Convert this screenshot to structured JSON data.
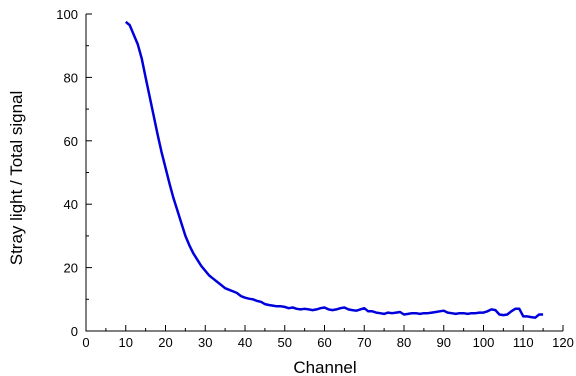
{
  "chart_data": {
    "type": "line",
    "title": "",
    "xlabel": "Channel",
    "ylabel": "Stray light / Total signal",
    "xlim": [
      0,
      120
    ],
    "ylim": [
      0,
      100
    ],
    "xticks": [
      0,
      10,
      20,
      30,
      40,
      50,
      60,
      70,
      80,
      90,
      100,
      110,
      120
    ],
    "yticks": [
      0,
      20,
      40,
      60,
      80,
      100
    ],
    "xticks_minor": [
      5,
      15,
      25,
      35,
      45,
      55,
      65,
      75,
      85,
      95,
      105,
      115
    ],
    "yticks_minor": [
      10,
      30,
      50,
      70,
      90
    ],
    "grid": false,
    "legend": "none",
    "series": [
      {
        "color": "#0000dd",
        "x": [
          10,
          11,
          12,
          13,
          14,
          15,
          16,
          17,
          18,
          19,
          20,
          21,
          22,
          23,
          24,
          25,
          26,
          27,
          28,
          29,
          30,
          31,
          32,
          33,
          34,
          35,
          36,
          37,
          38,
          39,
          40,
          41,
          42,
          43,
          44,
          45,
          46,
          47,
          48,
          49,
          50,
          51,
          52,
          53,
          54,
          55,
          56,
          57,
          58,
          59,
          60,
          61,
          62,
          63,
          64,
          65,
          66,
          67,
          68,
          69,
          70,
          71,
          72,
          73,
          74,
          75,
          76,
          77,
          78,
          79,
          80,
          81,
          82,
          83,
          84,
          85,
          86,
          87,
          88,
          89,
          90,
          91,
          92,
          93,
          94,
          95,
          96,
          97,
          98,
          99,
          100,
          101,
          102,
          103,
          104,
          105,
          106,
          107,
          108,
          109,
          110,
          111,
          112,
          113,
          114,
          115
        ],
        "y": [
          97.5,
          96.5,
          93.5,
          90.5,
          86,
          80,
          74,
          68,
          62,
          56.5,
          51.5,
          46.5,
          42,
          38,
          34,
          30,
          27,
          24.5,
          22.5,
          20.5,
          19,
          17.5,
          16.5,
          15.5,
          14.5,
          13.5,
          13,
          12.5,
          12,
          11,
          10.5,
          10.2,
          10,
          9.5,
          9.2,
          8.5,
          8.2,
          8,
          7.8,
          7.8,
          7.6,
          7.2,
          7.4,
          7,
          6.8,
          7,
          6.8,
          6.6,
          6.8,
          7.2,
          7.4,
          6.8,
          6.6,
          6.8,
          7.2,
          7.4,
          6.8,
          6.6,
          6.4,
          6.8,
          7.2,
          6.2,
          6.2,
          5.8,
          5.6,
          5.4,
          5.8,
          5.6,
          5.8,
          6,
          5.2,
          5.4,
          5.6,
          5.6,
          5.4,
          5.6,
          5.6,
          5.8,
          6,
          6.2,
          6.4,
          5.8,
          5.6,
          5.4,
          5.6,
          5.6,
          5.4,
          5.6,
          5.6,
          5.8,
          5.8,
          6.2,
          6.8,
          6.6,
          5.2,
          5,
          5.2,
          6.2,
          7,
          7,
          4.6,
          4.6,
          4.4,
          4.2,
          5.2,
          5.2
        ]
      }
    ]
  }
}
